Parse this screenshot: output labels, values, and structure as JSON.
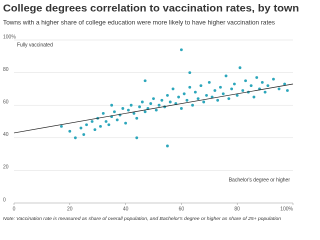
{
  "chart_data": {
    "type": "scatter",
    "title": "College degrees correlation to vaccination rates, by town",
    "subtitle": "Towns with a higher share of college education were more likely to have higher vaccination rates",
    "y_annotation": "Fully vaccinated",
    "x_annotation": "Bachelor's degree or higher",
    "note": "Note: Vaccination rate is measured as share of overall population, and Bachelor's degree or higher as share of 25+ population",
    "color": "#2ba6bb",
    "x": [
      17,
      20,
      22,
      24,
      25,
      26,
      28,
      29,
      30,
      31,
      32,
      33,
      34,
      35,
      36,
      37,
      38,
      39,
      40,
      41,
      42,
      43,
      44,
      45,
      46,
      47,
      48,
      49,
      50,
      51,
      52,
      53,
      54,
      55,
      56,
      57,
      58,
      59,
      60,
      60,
      61,
      62,
      63,
      64,
      65,
      66,
      67,
      68,
      69,
      70,
      71,
      72,
      73,
      74,
      75,
      76,
      77,
      78,
      79,
      80,
      81,
      82,
      83,
      84,
      85,
      86,
      87,
      88,
      89,
      90,
      91,
      93,
      95,
      97,
      98,
      55,
      44,
      63,
      47,
      35
    ],
    "values": [
      47,
      44,
      40,
      46,
      42,
      48,
      50,
      45,
      52,
      47,
      55,
      50,
      48,
      53,
      56,
      51,
      54,
      58,
      49,
      57,
      60,
      55,
      52,
      59,
      62,
      56,
      58,
      61,
      64,
      57,
      60,
      63,
      59,
      66,
      62,
      70,
      61,
      65,
      94,
      58,
      67,
      63,
      71,
      60,
      68,
      64,
      72,
      62,
      66,
      74,
      65,
      69,
      63,
      71,
      67,
      78,
      64,
      70,
      73,
      66,
      83,
      69,
      75,
      68,
      72,
      65,
      77,
      70,
      74,
      68,
      72,
      76,
      70,
      73,
      69,
      35,
      40,
      80,
      75,
      60
    ],
    "trendline": {
      "x": [
        0,
        100
      ],
      "y": [
        43,
        73
      ]
    },
    "xlim": [
      0,
      100
    ],
    "ylim": [
      0,
      100
    ],
    "xticks": [
      0,
      20,
      40,
      60,
      80,
      {
        "value": 100,
        "label": "100%"
      }
    ],
    "yticks": [
      0,
      20,
      40,
      60,
      80,
      {
        "value": 100,
        "label": "100%"
      }
    ],
    "grid": true
  }
}
